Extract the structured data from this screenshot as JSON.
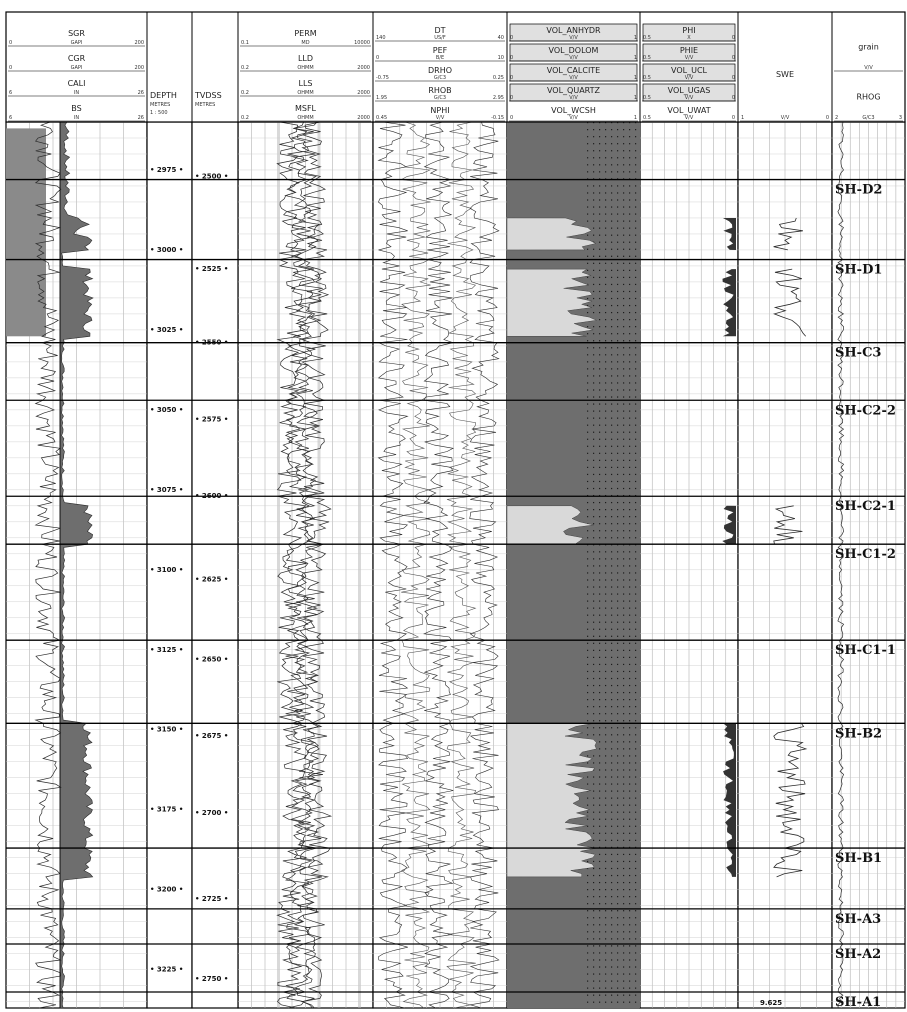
{
  "chart_data": {
    "type": "well-log",
    "depth_md": {
      "label": "DEPTH",
      "unit": "METRES",
      "scale": "1 : 500",
      "range": [
        2960,
        3237
      ],
      "ticks": [
        2975,
        3000,
        3025,
        3050,
        3075,
        3100,
        3125,
        3150,
        3175,
        3200,
        3225
      ]
    },
    "depth_tvdss": {
      "label": "TVDSS",
      "unit": "METRES",
      "ticks": [
        {
          "md": 2977,
          "tvdss": 2500
        },
        {
          "md": 3006,
          "tvdss": 2525
        },
        {
          "md": 3029,
          "tvdss": 2550
        },
        {
          "md": 3053,
          "tvdss": 2575
        },
        {
          "md": 3077,
          "tvdss": 2600
        },
        {
          "md": 3103,
          "tvdss": 2625
        },
        {
          "md": 3128,
          "tvdss": 2650
        },
        {
          "md": 3152,
          "tvdss": 2675
        },
        {
          "md": 3176,
          "tvdss": 2700
        },
        {
          "md": 3203,
          "tvdss": 2725
        },
        {
          "md": 3228,
          "tvdss": 2750
        }
      ]
    },
    "tracks": [
      {
        "curves": [
          {
            "name": "SGR",
            "unit": "GAPI",
            "min": "0",
            "max": "200"
          },
          {
            "name": "CGR",
            "unit": "GAPI",
            "min": "0",
            "max": "200"
          },
          {
            "name": "CALI",
            "unit": "IN",
            "min": "6",
            "max": "26"
          },
          {
            "name": "BS",
            "unit": "IN",
            "min": "6",
            "max": "26"
          }
        ]
      },
      {
        "curves": [
          {
            "name": "PERM",
            "unit": "MD",
            "min": "0.1",
            "max": "10000"
          },
          {
            "name": "LLD",
            "unit": "OHMM",
            "min": "0.2",
            "max": "2000"
          },
          {
            "name": "LLS",
            "unit": "OHMM",
            "min": "0.2",
            "max": "2000"
          },
          {
            "name": "MSFL",
            "unit": "OHMM",
            "min": "0.2",
            "max": "2000"
          }
        ]
      },
      {
        "curves": [
          {
            "name": "DT",
            "unit": "US/F",
            "min": "140",
            "max": "40"
          },
          {
            "name": "PEF",
            "unit": "B/E",
            "min": "0",
            "max": "10"
          },
          {
            "name": "DRHO",
            "unit": "G/C3",
            "min": "-0.75",
            "max": "0.25"
          },
          {
            "name": "RHOB",
            "unit": "G/C3",
            "min": "1.95",
            "max": "2.95"
          },
          {
            "name": "NPHI",
            "unit": "V/V",
            "min": "0.45",
            "max": "-0.15"
          }
        ]
      },
      {
        "curves": [
          {
            "name": "VOL_ANHYDR",
            "unit": "V/V",
            "min": "0",
            "max": "1"
          },
          {
            "name": "VOL_DOLOM",
            "unit": "V/V",
            "min": "0",
            "max": "1"
          },
          {
            "name": "VOL_CALCITE",
            "unit": "V/V",
            "min": "0",
            "max": "1"
          },
          {
            "name": "VOL_QUARTZ",
            "unit": "V/V",
            "min": "0",
            "max": "1"
          },
          {
            "name": "VOL_WCSH",
            "unit": "V/V",
            "min": "0",
            "max": "1"
          }
        ]
      },
      {
        "curves": [
          {
            "name": "PHI",
            "unit": "X",
            "min": "0.5",
            "max": "0"
          },
          {
            "name": "PHIE",
            "unit": "V/V",
            "min": "0.5",
            "max": "0"
          },
          {
            "name": "VOL_UCL",
            "unit": "V/V",
            "min": "0.5",
            "max": "0"
          },
          {
            "name": "VOL_UGAS",
            "unit": "V/V",
            "min": "0.5",
            "max": "0"
          },
          {
            "name": "VOL_UWAT",
            "unit": "V/V",
            "min": "0.5",
            "max": "0"
          }
        ]
      },
      {
        "curves": [
          {
            "name": "SWE",
            "unit": "V/V",
            "min": "1",
            "max": "0"
          }
        ]
      },
      {
        "curves": [
          {
            "name": "grain",
            "unit": "V/V",
            "min": "",
            "max": ""
          },
          {
            "name": "RHOG",
            "unit": "G/C3",
            "min": "2",
            "max": "3"
          }
        ]
      }
    ],
    "zones": [
      {
        "name": "SH-D2",
        "top": 2978,
        "base": 3003
      },
      {
        "name": "SH-D1",
        "top": 3003,
        "base": 3029
      },
      {
        "name": "SH-C3",
        "top": 3029,
        "base": 3047
      },
      {
        "name": "SH-C2-2",
        "top": 3047,
        "base": 3077
      },
      {
        "name": "SH-C2-1",
        "top": 3077,
        "base": 3092
      },
      {
        "name": "SH-C1-2",
        "top": 3092,
        "base": 3122
      },
      {
        "name": "SH-C1-1",
        "top": 3122,
        "base": 3148
      },
      {
        "name": "SH-B2",
        "top": 3148,
        "base": 3187
      },
      {
        "name": "SH-B1",
        "top": 3187,
        "base": 3206
      },
      {
        "name": "SH-A3",
        "top": 3206,
        "base": 3217
      },
      {
        "name": "SH-A2",
        "top": 3217,
        "base": 3232
      },
      {
        "name": "SH-A1",
        "top": 3232,
        "base": 3237
      }
    ],
    "reservoir_intervals": [
      {
        "top": 2990,
        "base": 3000
      },
      {
        "top": 3006,
        "base": 3027
      },
      {
        "top": 3080,
        "base": 3092
      },
      {
        "top": 3148,
        "base": 3196
      }
    ],
    "bottom_label": "9.625"
  },
  "colors": {
    "shale_fill": "#6e6e6e",
    "sand_fill": "#d9d9d9",
    "grid": "#b3b3b3",
    "curve": "#2b2b2b"
  }
}
